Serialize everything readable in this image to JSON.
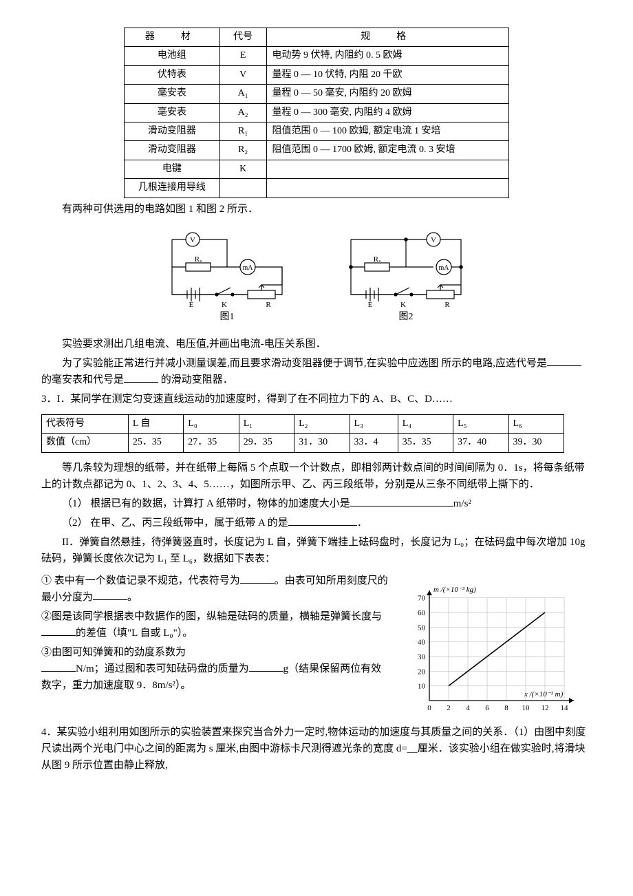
{
  "equipment_table": {
    "headers": [
      "器　材",
      "代号",
      "规　格"
    ],
    "rows": [
      [
        "电池组",
        "E",
        "电动势 9 伏特, 内阻约 0. 5 欧姆"
      ],
      [
        "伏特表",
        "V",
        "量程 0 — 10 伏特, 内阻 20 千欧"
      ],
      [
        "毫安表",
        "A₁",
        "量程 0 — 50 毫安, 内阻约 20 欧姆"
      ],
      [
        "毫安表",
        "A₂",
        "量程 0 — 300 毫安, 内阻约 4 欧姆"
      ],
      [
        "滑动变阻器",
        "R₁",
        "阻值范围 0 — 100 欧姆, 额定电流 1 安培"
      ],
      [
        "滑动变阻器",
        "R₂",
        "阻值范围 0 — 1700 欧姆, 额定电流 0. 3 安培"
      ],
      [
        "电键",
        "K",
        ""
      ],
      [
        "几根连接用导线",
        "",
        ""
      ]
    ]
  },
  "circuit_intro": "有两种可供选用的电路如图 1 和图 2 所示．",
  "circuit1_label": "图1",
  "circuit2_label": "图2",
  "circuit": {
    "voltmeter": "V",
    "ammeter": "mA",
    "resistor": "Rₓ",
    "emf": "E",
    "switch": "K",
    "rheostat": "R"
  },
  "q2_p1": "实验要求测出几组电流、电压值,并画出电流-电压关系图．",
  "q2_p2_a": "为了实验能正常进行并减小测量误差,而且要求滑动变阻器便于调节,在实验中应选图",
  "q2_p2_b": "所示的电路,应选代号是",
  "q2_p2_c": "的毫安表和代号是",
  "q2_p2_d": "的滑动变阻器．",
  "q3_title": "3．I．某同学在测定匀变速直线运动的加速度时，得到了在不同拉力下的 A、B、C、D……",
  "data_table": {
    "row1_label": "代表符号",
    "row1": [
      "L 自",
      "L₀",
      "L₁",
      "L₂",
      "L₃",
      "L₄",
      "L₅",
      "L₆"
    ],
    "row2_label": "数值（cm）",
    "row2": [
      "25．35",
      "27．35",
      "29．35",
      "31．30",
      "33．4",
      "35．35",
      "37．40",
      "39．30"
    ]
  },
  "q3_I_intro": "等几条较为理想的纸带，并在纸带上每隔 5 个点取一个计数点，即相邻两计数点间的时间间隔为 0．1s，将每条纸带上的计数点都记为 0、1、2、3、4、5……，如图所示甲、乙、丙三段纸带，分别是从三条不同纸带上撕下的．",
  "q3_I_1_a": "（1） 根据已有的数据，计算打 A 纸带时，物体的加速度大小是",
  "q3_I_1_unit": "m/s²",
  "q3_I_2_a": "（2） 在甲、乙、丙三段纸带中，属于纸带 A 的是",
  "q3_I_2_end": "．",
  "q3_II_intro": "II．弹簧自然悬挂，待弹簧竖直时，长度记为 L 自，弹簧下端挂上砝码盘时，长度记为 L₀；在砝码盘中每次增加 10g 砝码，弹簧长度依次记为 L₁ 至 L₆，数据如下表表：",
  "q3_II_1_a": "① 表中有一个数值记录不规范，代表符号为",
  "q3_II_1_b": "。由表可知所用刻度尺的最小分度为",
  "q3_II_1_c": "。",
  "q3_II_2_a": "②图是该同学根据表中数据作的图，纵轴是砝码的质量，横轴是弹簧长度与",
  "q3_II_2_b": "的差值（填\"L 自或 L₀\"）。",
  "q3_II_3_a": "③由图可知弹簧和的劲度系数为",
  "q3_II_3_b": "N/m；通过图和表可知砝码盘的质量为",
  "q3_II_3_c": "g（结果保留两位有效数字，重力加速度取 9．8m/s²）。",
  "graph": {
    "y_label": "m /(×10⁻³ kg)",
    "x_label": "x /(×10⁻² m)",
    "x_ticks": [
      "0",
      "2",
      "4",
      "6",
      "8",
      "10",
      "12",
      "14"
    ],
    "y_ticks": [
      "10",
      "20",
      "30",
      "40",
      "50",
      "60",
      "70"
    ],
    "line_x1": 2,
    "line_y1": 10,
    "line_x2": 12,
    "line_y2": 60,
    "xlim": [
      0,
      15
    ],
    "ylim": [
      0,
      75
    ],
    "axis_color": "#000000",
    "grid_color": "#c0c0c0",
    "background": "#ffffff",
    "label_fontsize": 11
  },
  "q4": "4．某实验小组利用如图所示的实验装置来探究当合外力一定时,物体运动的加速度与其质量之间的关系．（1）由图中刻度尺读出两个光电门中心之间的距离为 s 厘米,由图中游标卡尺测得遮光条的宽度 d=__厘米．该实验小组在做实验时,将滑块从图 9 所示位置由静止释放,"
}
